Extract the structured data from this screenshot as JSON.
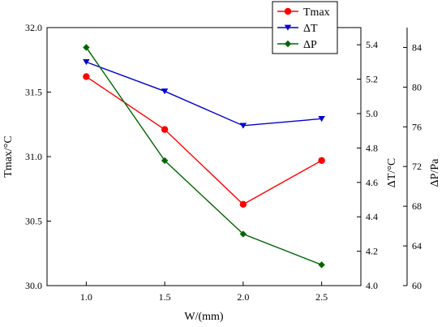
{
  "chart_data": {
    "type": "line",
    "x": [
      1.0,
      1.5,
      2.0,
      2.5
    ],
    "xlabel": "W/(mm)",
    "xlim": [
      0.75,
      2.75
    ],
    "xticks": [
      "1.0",
      "1.5",
      "2.0",
      "2.5"
    ],
    "axes": {
      "left": {
        "label": "Tmax/°C",
        "ylim": [
          30.0,
          32.0
        ],
        "ticks": [
          "30.0",
          "30.5",
          "31.0",
          "31.5",
          "32.0"
        ],
        "tick_values": [
          30.0,
          30.5,
          31.0,
          31.5,
          32.0
        ]
      },
      "right1": {
        "label": "ΔT/°C",
        "ylim": [
          4.0,
          5.5
        ],
        "ticks": [
          "4.0",
          "4.2",
          "4.4",
          "4.6",
          "4.8",
          "5.0",
          "5.2",
          "5.4"
        ],
        "tick_values": [
          4.0,
          4.2,
          4.4,
          4.6,
          4.8,
          5.0,
          5.2,
          5.4
        ]
      },
      "right2": {
        "label": "ΔP/Pa",
        "ylim": [
          60,
          86
        ],
        "ticks": [
          "60",
          "64",
          "68",
          "72",
          "76",
          "80",
          "84"
        ],
        "tick_values": [
          60,
          64,
          68,
          72,
          76,
          80,
          84
        ]
      }
    },
    "series": [
      {
        "name": "Tmax",
        "axis": "left",
        "color": "#ff0000",
        "marker": "circle",
        "values": [
          31.62,
          31.21,
          30.63,
          30.97
        ]
      },
      {
        "name": "ΔT",
        "axis": "right1",
        "color": "#0000cc",
        "marker": "triangle-down",
        "values": [
          5.3,
          5.13,
          4.93,
          4.97
        ]
      },
      {
        "name": "ΔP",
        "axis": "right2",
        "color": "#006600",
        "marker": "diamond",
        "values": [
          84.0,
          72.6,
          65.2,
          62.1
        ]
      }
    ],
    "legend": {
      "placement": "top-right"
    },
    "grid": false
  }
}
